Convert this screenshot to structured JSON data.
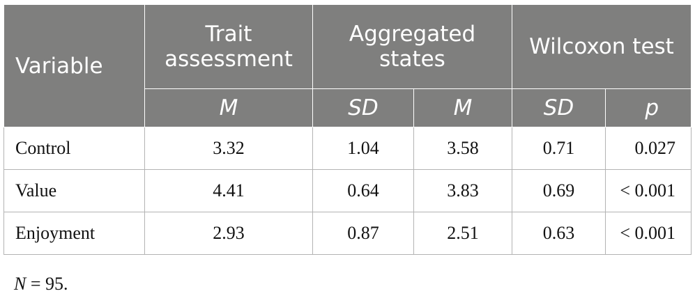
{
  "table": {
    "headers": {
      "variable": "Variable",
      "trait": "Trait assessment",
      "aggregated": "Aggregated states",
      "wilcoxon": "Wilcoxon test"
    },
    "subheaders": {
      "trait_m": "M",
      "agg_sd": "SD",
      "agg_m": "M",
      "wil_sd": "SD",
      "wil_p": "p"
    },
    "rows": [
      {
        "variable": "Control",
        "trait_m": "3.32",
        "agg_sd": "1.04",
        "agg_m": "3.58",
        "wil_sd": "0.71",
        "wil_p": "0.027"
      },
      {
        "variable": "Value",
        "trait_m": "4.41",
        "agg_sd": "0.64",
        "agg_m": "3.83",
        "wil_sd": "0.69",
        "wil_p": "< 0.001"
      },
      {
        "variable": "Enjoyment",
        "trait_m": "2.93",
        "agg_sd": "0.87",
        "agg_m": "2.51",
        "wil_sd": "0.63",
        "wil_p": "< 0.001"
      }
    ]
  },
  "note": {
    "symbol": "N",
    "text": " = 95."
  },
  "colors": {
    "header_bg": "#7f7f7e",
    "header_text": "#ffffff",
    "border": "#b3b3b3"
  }
}
